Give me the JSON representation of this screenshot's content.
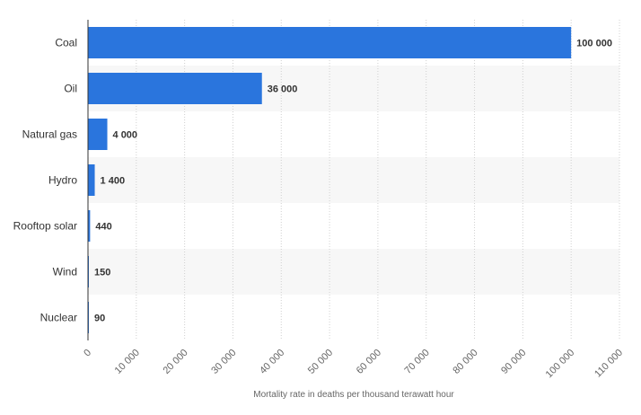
{
  "chart_data": {
    "type": "bar",
    "orientation": "horizontal",
    "categories": [
      "Coal",
      "Oil",
      "Natural gas",
      "Hydro",
      "Rooftop solar",
      "Wind",
      "Nuclear"
    ],
    "values": [
      100000,
      36000,
      4000,
      1400,
      440,
      150,
      90
    ],
    "value_labels": [
      "100 000",
      "36 000",
      "4 000",
      "1 400",
      "440",
      "150",
      "90"
    ],
    "xlabel": "Mortality rate in deaths per thousand terawatt hour",
    "ylabel": "",
    "xlim": [
      0,
      110000
    ],
    "ticks": [
      0,
      10000,
      20000,
      30000,
      40000,
      50000,
      60000,
      70000,
      80000,
      90000,
      100000,
      110000
    ],
    "tick_labels": [
      "0",
      "10 000",
      "20 000",
      "30 000",
      "40 000",
      "50 000",
      "60 000",
      "70 000",
      "80 000",
      "90 000",
      "100 000",
      "110 000"
    ],
    "grid": "vertical dotted",
    "colors": {
      "bar": "#2a75dd",
      "band": "#f7f7f7",
      "grid": "#d0d0d0",
      "axis": "#333333"
    }
  }
}
